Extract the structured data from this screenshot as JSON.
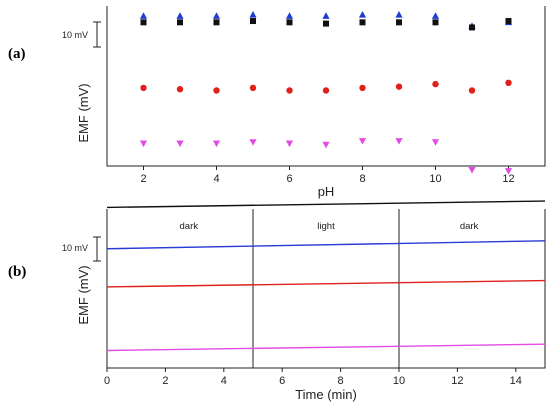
{
  "chart_data": [
    {
      "type": "scatter",
      "panel_label": "(a)",
      "xlabel": "pH",
      "ylabel": "EMF (mV)",
      "xlim": [
        1,
        13
      ],
      "ylim": [
        0,
        100
      ],
      "xticks": [
        2,
        4,
        6,
        8,
        10,
        12
      ],
      "scale_bar": {
        "label": "10 mV",
        "value": 10
      },
      "y_tick_labels_shown": false,
      "series": [
        {
          "marker": "triangle-up",
          "color": "#1f3bd6",
          "x": [
            2,
            3,
            4,
            5,
            6,
            7,
            8,
            9,
            10,
            11,
            12
          ],
          "y": [
            93.7,
            93.7,
            93.7,
            94.5,
            93.7,
            93.7,
            94.5,
            94.5,
            93.7,
            87.4,
            89.8
          ]
        },
        {
          "marker": "square",
          "color": "#111111",
          "x": [
            2,
            3,
            4,
            5,
            6,
            7,
            8,
            9,
            10,
            11,
            12
          ],
          "y": [
            89.8,
            89.8,
            89.8,
            90.6,
            89.8,
            89.0,
            89.8,
            89.8,
            89.8,
            86.6,
            90.6
          ]
        },
        {
          "marker": "circle",
          "color": "#e0201b",
          "x": [
            2,
            3,
            4,
            5,
            6,
            7,
            8,
            9,
            10,
            11,
            12
          ],
          "y": [
            48.8,
            48.0,
            47.2,
            48.8,
            47.2,
            47.2,
            48.8,
            49.6,
            51.2,
            47.2,
            52.0
          ]
        },
        {
          "marker": "triangle-down",
          "color": "#e24be4",
          "x": [
            2,
            3,
            4,
            5,
            6,
            7,
            8,
            9,
            10,
            11,
            12
          ],
          "y": [
            14.2,
            14.2,
            14.2,
            15.0,
            14.2,
            13.4,
            15.7,
            15.7,
            15.0,
            -2.4,
            -3.1
          ]
        }
      ]
    },
    {
      "type": "line",
      "panel_label": "(b)",
      "xlabel": "Time (min)",
      "ylabel": "EMF (mV)",
      "xlim": [
        0,
        15
      ],
      "ylim": [
        0,
        100
      ],
      "xticks": [
        0,
        2,
        4,
        6,
        8,
        10,
        12,
        14
      ],
      "scale_bar": {
        "label": "10 mV",
        "value": 10
      },
      "y_tick_labels_shown": false,
      "vertical_markers": [
        5,
        10
      ],
      "regions": [
        {
          "label": "dark",
          "x": 2.8
        },
        {
          "label": "light",
          "x": 7.5
        },
        {
          "label": "dark",
          "x": 12.4
        }
      ],
      "series": [
        {
          "color": "#111111",
          "x": [
            0,
            15
          ],
          "y": [
            101,
            105
          ]
        },
        {
          "color": "#2a3bd6",
          "x": [
            0,
            15
          ],
          "y": [
            75,
            80
          ]
        },
        {
          "color": "#e0201b",
          "x": [
            0,
            15
          ],
          "y": [
            51,
            55
          ]
        },
        {
          "color": "#e24be4",
          "x": [
            0,
            15
          ],
          "y": [
            11,
            15
          ]
        }
      ]
    }
  ]
}
